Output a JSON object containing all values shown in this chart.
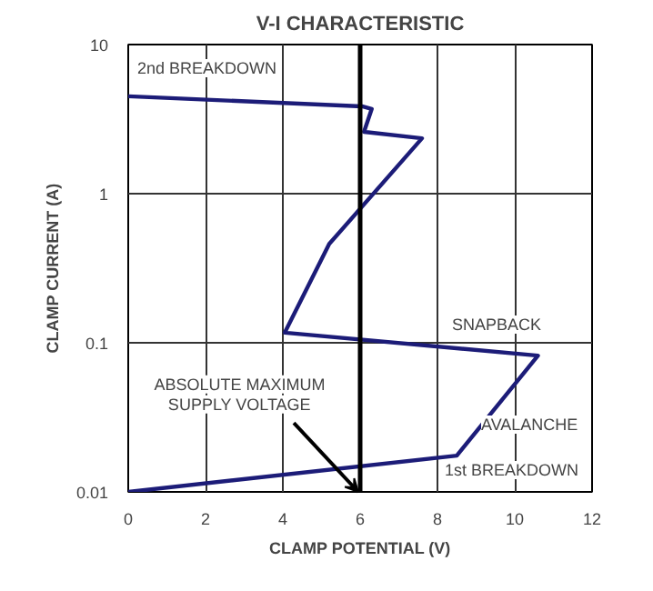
{
  "chart_data": {
    "type": "line",
    "title": "V-I CHARACTERISTIC",
    "xlabel": "CLAMP POTENTIAL (V)",
    "ylabel": "CLAMP CURRENT (A)",
    "x": [
      0,
      8.5,
      10.6,
      4.05,
      5.2,
      7.6,
      6.1,
      6.3,
      6.05,
      0
    ],
    "series": [
      {
        "color": "#1c1c78",
        "values": [
          0.01,
          0.0175,
          0.082,
          0.117,
          0.46,
          2.35,
          2.6,
          3.7,
          3.85,
          4.5
        ]
      }
    ],
    "xlim": [
      0,
      12
    ],
    "ylim": [
      0.01,
      10
    ],
    "xticks": [
      0,
      2,
      4,
      6,
      8,
      10,
      12
    ],
    "yticks": [
      {
        "value": 0.01,
        "label": "0.01"
      },
      {
        "value": 0.1,
        "label": "0.1"
      },
      {
        "value": 1,
        "label": "1"
      },
      {
        "value": 10,
        "label": "10"
      }
    ],
    "log": "y",
    "grid": true,
    "marker": "none",
    "line_style": "solid",
    "ref_lines": [
      {
        "axis": "x",
        "value": 6,
        "label": "ABSOLUTE MAXIMUM\nSUPPLY VOLTAGE",
        "color": "#000000"
      }
    ],
    "annotations": [
      "2nd BREAKDOWN",
      "SNAPBACK",
      "AVALANCHE",
      "1st BREAKDOWN"
    ]
  }
}
